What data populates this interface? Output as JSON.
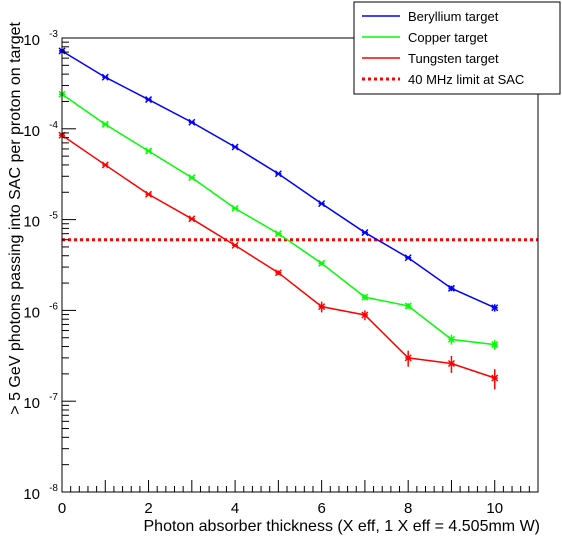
{
  "chart_data": {
    "type": "line",
    "xlabel": "Photon absorber thickness (X eff, 1 X eff = 4.505mm W)",
    "ylabel": "> 5 GeV photons passing into SAC per proton on target",
    "xlim": [
      0,
      11
    ],
    "ylim": [
      1e-08,
      0.001
    ],
    "yscale": "log",
    "x_ticks": [
      "0",
      "2",
      "4",
      "6",
      "8",
      "10"
    ],
    "y_ticks": [
      {
        "value": 0.001,
        "base": "10",
        "exp": "-3"
      },
      {
        "value": 0.0001,
        "base": "10",
        "exp": "-4"
      },
      {
        "value": 1e-05,
        "base": "10",
        "exp": "-5"
      },
      {
        "value": 1e-06,
        "base": "10",
        "exp": "-6"
      },
      {
        "value": 1e-07,
        "base": "10",
        "exp": "-7"
      },
      {
        "value": 1e-08,
        "base": "10",
        "exp": "-8"
      }
    ],
    "legend_position": "top-right",
    "series": [
      {
        "name": "Beryllium target",
        "color": "#0000ff",
        "x": [
          0,
          1,
          2,
          3,
          4,
          5,
          6,
          7,
          8,
          9,
          10
        ],
        "y": [
          0.00072,
          0.00037,
          0.00021,
          0.000118,
          6.3e-05,
          3.2e-05,
          1.5e-05,
          7.2e-06,
          3.8e-06,
          1.75e-06,
          1.07e-06
        ],
        "err": [
          2e-06,
          5e-06,
          3e-06,
          2e-06,
          1e-06,
          5e-07,
          3e-07,
          2e-07,
          1.5e-07,
          1.2e-07,
          1e-07
        ]
      },
      {
        "name": "Copper target",
        "color": "#00ff00",
        "x": [
          0,
          1,
          2,
          3,
          4,
          5,
          6,
          7,
          8,
          9,
          10
        ],
        "y": [
          0.00024,
          0.000112,
          5.7e-05,
          2.9e-05,
          1.33e-05,
          7e-06,
          3.3e-06,
          1.4e-06,
          1.12e-06,
          4.8e-07,
          4.2e-07
        ],
        "err": [
          3e-06,
          2e-06,
          1e-06,
          5e-07,
          3e-07,
          2e-07,
          1.5e-07,
          1e-07,
          8e-08,
          6e-08,
          5e-08
        ]
      },
      {
        "name": "Tungsten target",
        "color": "#ff0000",
        "x": [
          0,
          1,
          2,
          3,
          4,
          5,
          6,
          7,
          8,
          9,
          10
        ],
        "y": [
          8.5e-05,
          4e-05,
          1.9e-05,
          1.02e-05,
          5.2e-06,
          2.6e-06,
          1.1e-06,
          8.9e-07,
          3e-07,
          2.6e-07,
          1.8e-07
        ],
        "err": [
          1e-06,
          5e-07,
          5e-07,
          3e-07,
          2e-07,
          1.5e-07,
          1.5e-07,
          1.1e-07,
          6e-08,
          5.5e-08,
          4.5e-08
        ]
      }
    ],
    "reference_line": {
      "name": "40 MHz limit at SAC",
      "color": "#ff0000",
      "style": "dotted",
      "y": 6e-06
    }
  }
}
